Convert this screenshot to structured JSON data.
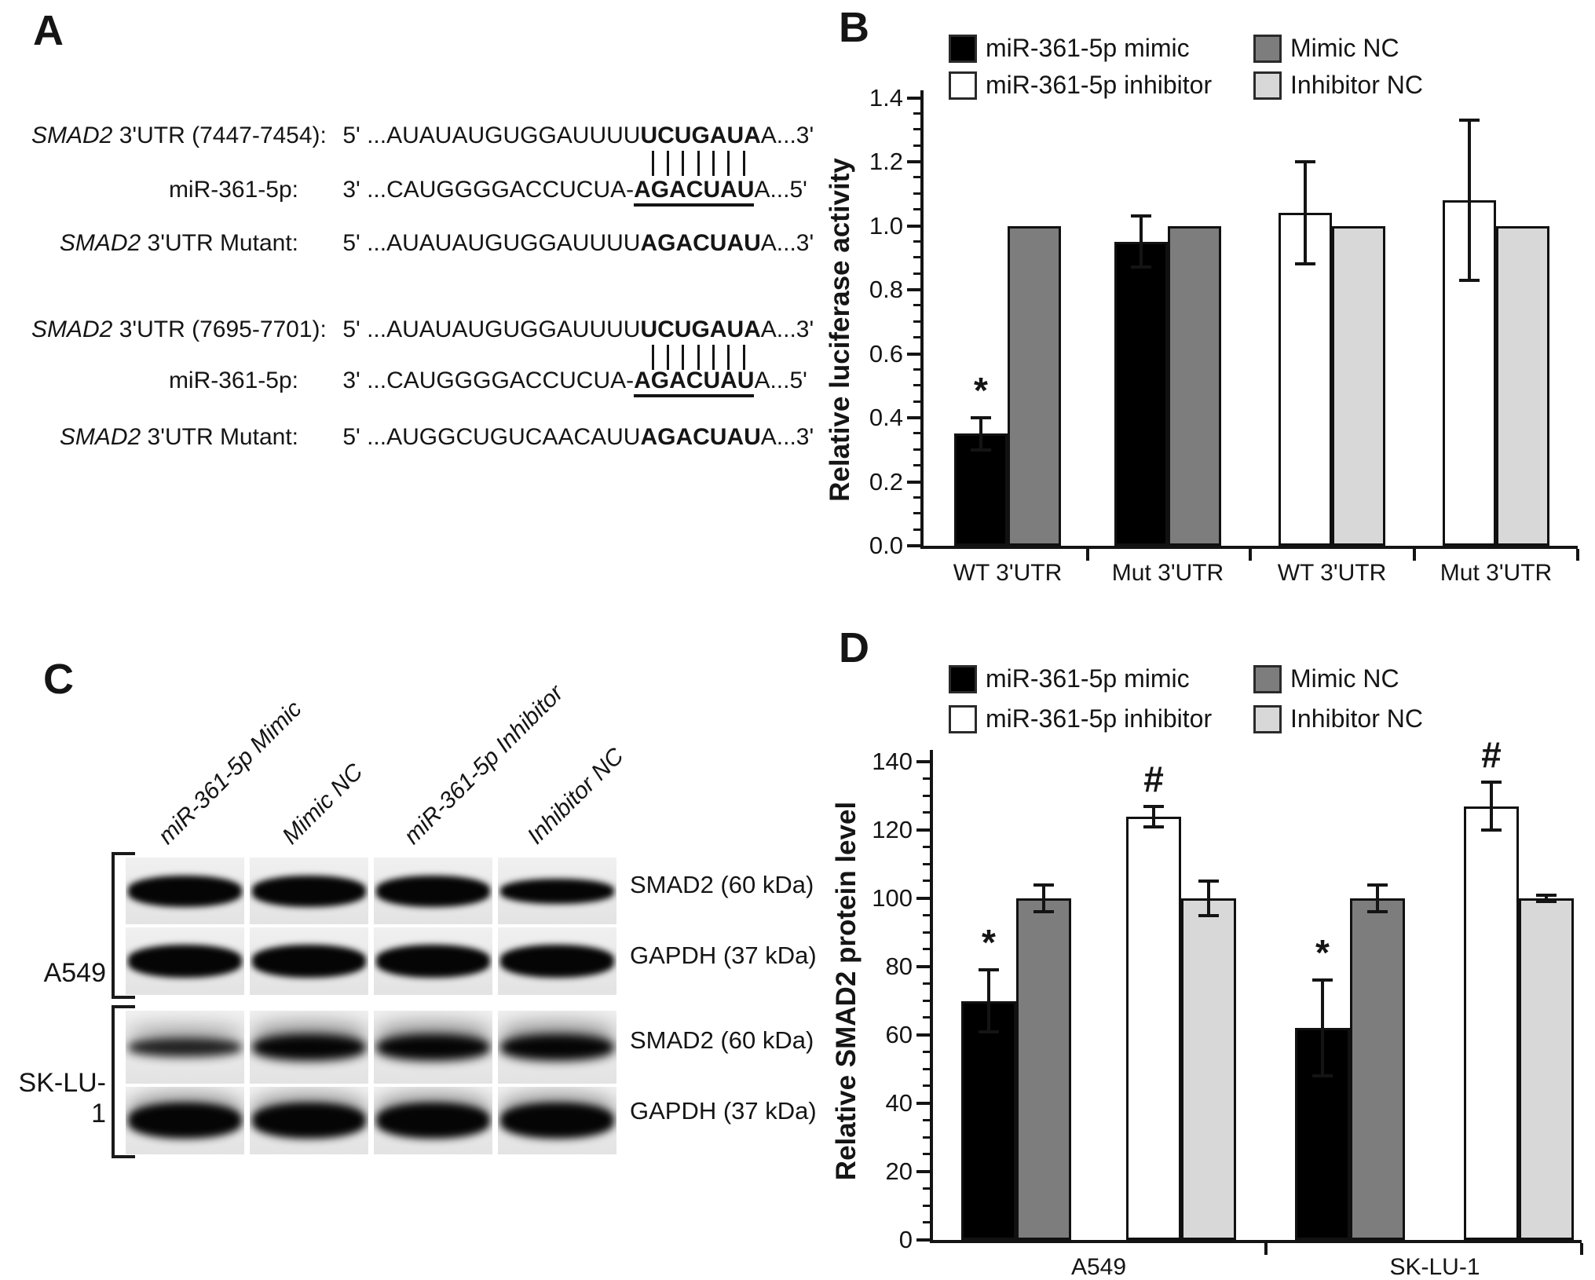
{
  "panels": {
    "A": {
      "letter": "A",
      "blocks": [
        {
          "target_label_italic": "SMAD2",
          "target_label": " 3'UTR (7447-7454):",
          "target_pre": "5' ...AUAUAUGUGGAUUUU",
          "target_bold": "UCUGAUA",
          "target_post": "A...3'",
          "pair_count": 7,
          "mir_label": "miR-361-5p:",
          "mir_pre": "3' ...CAUGGGGACCUCUA-",
          "mir_bold": "AGACUAU",
          "mir_post": "A...5'",
          "mut_label_italic": "SMAD2",
          "mut_label": " 3'UTR Mutant:",
          "mut_pre": "5' ...AUAUAUGUGGAUUUU",
          "mut_bold": "AGACUAU",
          "mut_post": "A...3'"
        },
        {
          "target_label_italic": "SMAD2",
          "target_label": " 3'UTR (7695-7701):",
          "target_pre": "5' ...AUAUAUGUGGAUUUU",
          "target_bold": "UCUGAUA",
          "target_post": "A...3'",
          "pair_count": 7,
          "mir_label": "miR-361-5p:",
          "mir_pre": "3' ...CAUGGGGACCUCUA-",
          "mir_bold": "AGACUAU",
          "mir_post": "A...5'",
          "mut_label_italic": "SMAD2",
          "mut_label": " 3'UTR Mutant:",
          "mut_pre": "5' ...AUGGCUGUCAACAUU",
          "mut_bold": "AGACUAU",
          "mut_post": "A...3'"
        }
      ]
    },
    "B": {
      "letter": "B"
    },
    "C": {
      "letter": "C",
      "lane_labels": [
        "miR-361-5p Mimic",
        "Mimic NC",
        "miR-361-5p Inhibitor",
        "Inhibitor NC"
      ],
      "cell_lines": [
        "A549",
        "SK-LU-1"
      ],
      "band_labels": [
        "SMAD2 (60 kDa)",
        "GAPDH (37 kDa)",
        "SMAD2 (60 kDa)",
        "GAPDH (37 kDa)"
      ]
    },
    "D": {
      "letter": "D"
    }
  },
  "legend": {
    "items": [
      {
        "label": "miR-361-5p mimic",
        "color": "#000000"
      },
      {
        "label": "Mimic NC",
        "color": "#7d7d7d"
      },
      {
        "label": "miR-361-5p inhibitor",
        "color": "#ffffff"
      },
      {
        "label": "Inhibitor NC",
        "color": "#d8d8d8"
      }
    ]
  },
  "series_colors": {
    "miR-361-5p mimic": "#000000",
    "Mimic NC": "#7d7d7d",
    "miR-361-5p inhibitor": "#ffffff",
    "Inhibitor NC": "#d8d8d8"
  },
  "chart_data": [
    {
      "panel": "B",
      "type": "bar",
      "ylabel": "Relative luciferase activity",
      "ylim": [
        0,
        1.4
      ],
      "ytick_step": 0.2,
      "minor_step": 0.05,
      "ytick_decimals": 1,
      "grid": false,
      "legend_position": "top",
      "categories": [
        "WT 3'UTR",
        "Mut 3'UTR",
        "WT 3'UTR",
        "Mut 3'UTR"
      ],
      "groups": [
        {
          "category": "WT 3'UTR",
          "bars": [
            {
              "series": "miR-361-5p mimic",
              "value": 0.35,
              "error": 0.05,
              "sig": "*"
            },
            {
              "series": "Mimic NC",
              "value": 1.0,
              "error": 0
            }
          ]
        },
        {
          "category": "Mut 3'UTR",
          "bars": [
            {
              "series": "miR-361-5p mimic",
              "value": 0.95,
              "error": 0.08
            },
            {
              "series": "Mimic NC",
              "value": 1.0,
              "error": 0
            }
          ]
        },
        {
          "category": "WT 3'UTR",
          "bars": [
            {
              "series": "miR-361-5p inhibitor",
              "value": 1.04,
              "error": 0.16
            },
            {
              "series": "Inhibitor NC",
              "value": 1.0,
              "error": 0
            }
          ]
        },
        {
          "category": "Mut 3'UTR",
          "bars": [
            {
              "series": "miR-361-5p inhibitor",
              "value": 1.08,
              "error": 0.25
            },
            {
              "series": "Inhibitor NC",
              "value": 1.0,
              "error": 0
            }
          ]
        }
      ]
    },
    {
      "panel": "D",
      "type": "bar",
      "ylabel": "Relative SMAD2 protein level",
      "ylim": [
        0,
        140
      ],
      "ytick_step": 20,
      "minor_step": 5,
      "ytick_decimals": 0,
      "grid": false,
      "legend_position": "top",
      "categories": [
        "A549",
        "SK-LU-1"
      ],
      "groups": [
        {
          "category": "A549",
          "bars": [
            {
              "series": "miR-361-5p mimic",
              "value": 70,
              "error": 9,
              "sig": "*"
            },
            {
              "series": "Mimic NC",
              "value": 100,
              "error": 4
            },
            {
              "series": "miR-361-5p inhibitor",
              "value": 124,
              "error": 3,
              "sig": "#"
            },
            {
              "series": "Inhibitor NC",
              "value": 100,
              "error": 5
            }
          ]
        },
        {
          "category": "SK-LU-1",
          "bars": [
            {
              "series": "miR-361-5p mimic",
              "value": 62,
              "error": 14,
              "sig": "*"
            },
            {
              "series": "Mimic NC",
              "value": 100,
              "error": 4
            },
            {
              "series": "miR-361-5p inhibitor",
              "value": 127,
              "error": 7,
              "sig": "#"
            },
            {
              "series": "Inhibitor NC",
              "value": 100,
              "error": 1
            }
          ]
        }
      ]
    }
  ]
}
